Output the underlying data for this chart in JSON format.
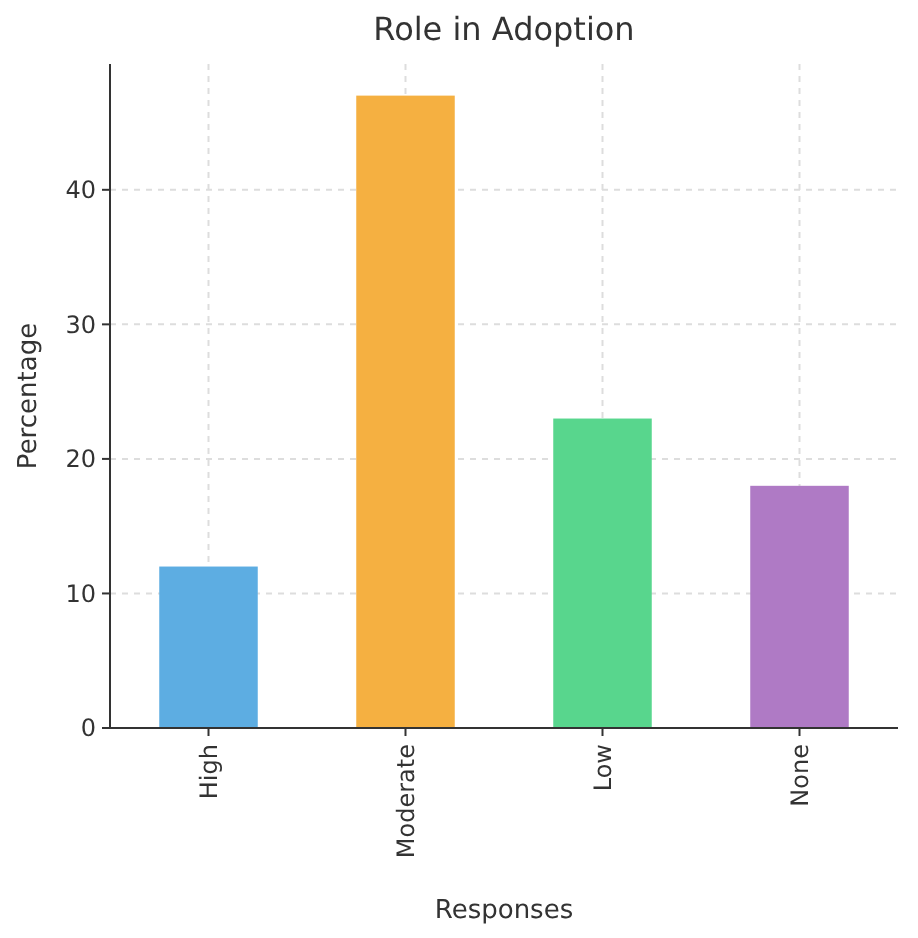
{
  "chart_data": {
    "type": "bar",
    "title": "Role in Adoption",
    "xlabel": "Responses",
    "ylabel": "Percentage",
    "categories": [
      "High",
      "Moderate",
      "Low",
      "None"
    ],
    "values": [
      12,
      47,
      23,
      18
    ],
    "colors": [
      "#5dade2",
      "#f5b041",
      "#58d68d",
      "#af7ac5"
    ],
    "ylim": [
      0,
      49.35
    ],
    "yticks": [
      0,
      10,
      20,
      30,
      40
    ],
    "grid": true
  }
}
